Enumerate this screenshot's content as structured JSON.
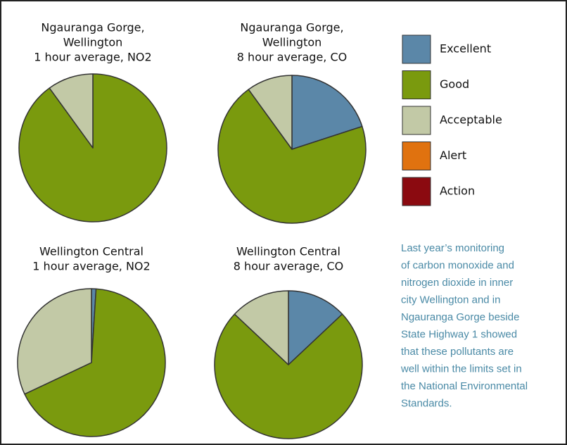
{
  "legend": {
    "labels": [
      "Excellent",
      "Good",
      "Acceptable",
      "Alert",
      "Action"
    ],
    "colors": [
      "#5b87a8",
      "#7a9a0e",
      "#c2c9a6",
      "#e0720f",
      "#8b0a10"
    ]
  },
  "note": [
    "Last year’s monitoring",
    "of carbon monoxide and",
    "nitrogen dioxide in inner",
    "city Wellington and in",
    "Ngauranga Gorge beside",
    "State Highway 1 showed",
    "that these pollutants are",
    "well within the limits set in",
    "the National Environmental",
    "Standards."
  ],
  "chart_data": [
    {
      "type": "pie",
      "title": [
        "Ngauranga Gorge,",
        "Wellington",
        "1 hour average, NO2"
      ],
      "values": [
        0,
        90,
        10,
        0,
        0
      ]
    },
    {
      "type": "pie",
      "title": [
        "Ngauranga Gorge,",
        "Wellington",
        "8 hour average, CO"
      ],
      "values": [
        20,
        70,
        10,
        0,
        0
      ]
    },
    {
      "type": "pie",
      "title": [
        "Wellington Central",
        "1 hour average, NO2"
      ],
      "values": [
        1,
        67,
        32,
        0,
        0
      ]
    },
    {
      "type": "pie",
      "title": [
        "Wellington Central",
        "8 hour average, CO"
      ],
      "values": [
        13,
        74,
        13,
        0,
        0
      ]
    }
  ]
}
